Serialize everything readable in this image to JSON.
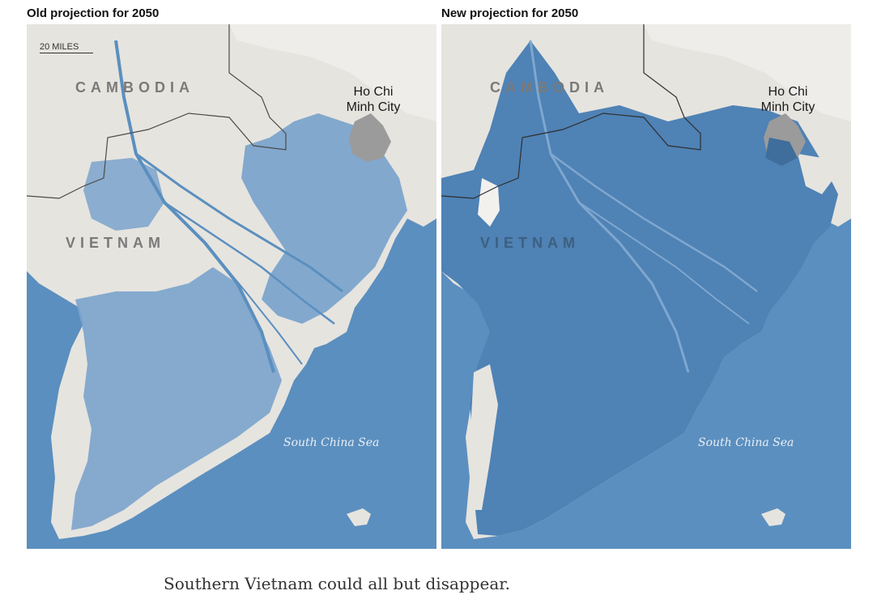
{
  "panels": [
    {
      "title": "Old projection for 2050",
      "scale_label": "20 MILES",
      "labels": {
        "cambodia": "CAMBODIA",
        "vietnam": "VIETNAM",
        "city_line1": "Ho Chi",
        "city_line2": "Minh City",
        "sea": "South China Sea"
      }
    },
    {
      "title": "New projection for 2050",
      "labels": {
        "cambodia": "CAMBODIA",
        "vietnam": "VIETNAM",
        "city_line1": "Ho Chi",
        "city_line2": "Minh City",
        "sea": "South China Sea"
      }
    }
  ],
  "caption": "Southern Vietnam could all but disappear.",
  "colors": {
    "sea": "#5b8fbf",
    "land": "#e6e4df",
    "flooded_old": "#7aa3cc",
    "flooded_new": "#4f82b5",
    "urban": "#9b9b9b",
    "border": "#4a4a4a"
  }
}
